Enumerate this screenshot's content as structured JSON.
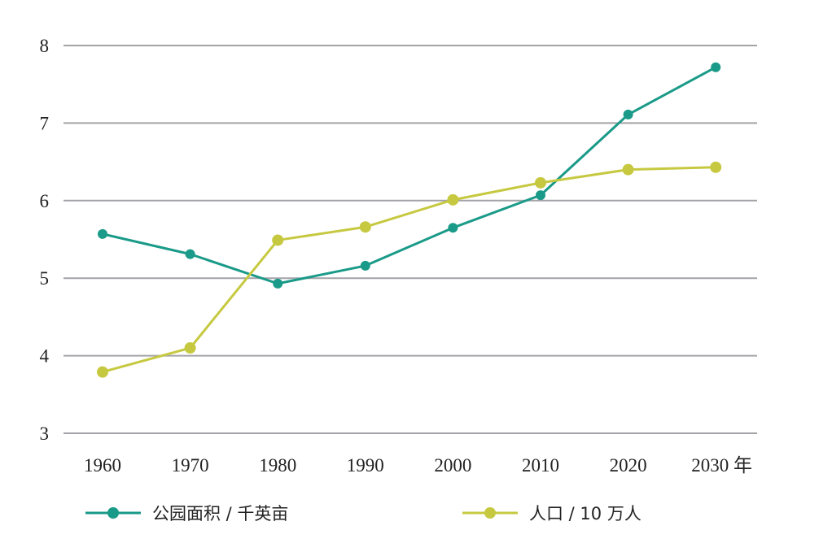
{
  "chart_data": {
    "type": "line",
    "x": [
      "1960",
      "1970",
      "1980",
      "1990",
      "2000",
      "2010",
      "2020",
      "2030 年"
    ],
    "ylim": [
      3,
      8
    ],
    "yticks": [
      "3",
      "4",
      "5",
      "6",
      "7",
      "8"
    ],
    "grid": true,
    "legend_position": "bottom",
    "series": [
      {
        "name": "公园面积 / 千英亩",
        "color": "#1a9a88",
        "values": [
          5.57,
          5.31,
          4.93,
          5.16,
          5.65,
          6.07,
          7.11,
          7.72
        ]
      },
      {
        "name": "人口 / 10 万人",
        "color": "#c6c940",
        "values": [
          3.79,
          4.1,
          5.49,
          5.66,
          6.01,
          6.23,
          6.4,
          6.43
        ]
      }
    ]
  },
  "colors": {
    "grid": "#a3a3a8",
    "text": "#222222"
  }
}
